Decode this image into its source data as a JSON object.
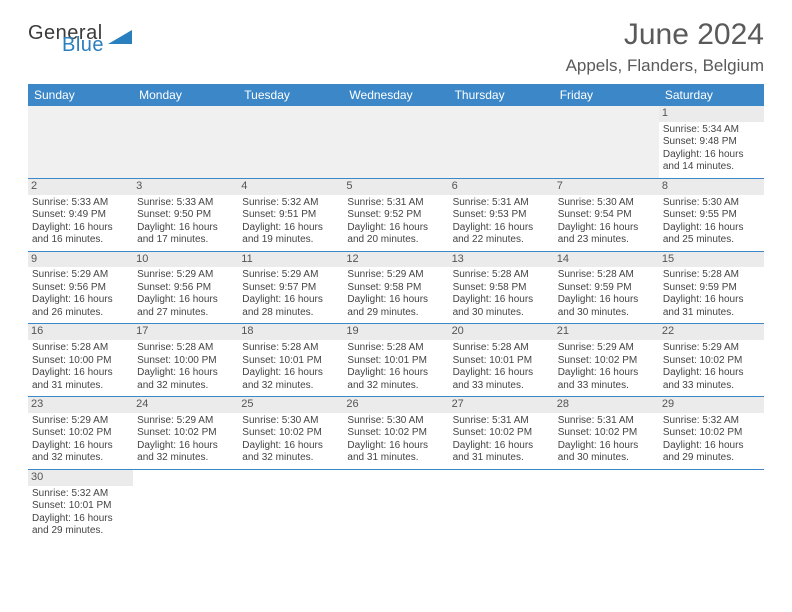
{
  "logo": {
    "part1": "General",
    "part2": "Blue",
    "tri_color": "#2a7fbf"
  },
  "title": "June 2024",
  "location": "Appels, Flanders, Belgium",
  "colors": {
    "header_bg": "#3b87c8",
    "header_text": "#ffffff",
    "daynum_bg": "#ebebeb",
    "border": "#3b87c8",
    "text": "#444444"
  },
  "columns": [
    "Sunday",
    "Monday",
    "Tuesday",
    "Wednesday",
    "Thursday",
    "Friday",
    "Saturday"
  ],
  "weeks": [
    [
      null,
      null,
      null,
      null,
      null,
      null,
      {
        "n": "1",
        "sr": "Sunrise: 5:34 AM",
        "ss": "Sunset: 9:48 PM",
        "d1": "Daylight: 16 hours",
        "d2": "and 14 minutes."
      }
    ],
    [
      {
        "n": "2",
        "sr": "Sunrise: 5:33 AM",
        "ss": "Sunset: 9:49 PM",
        "d1": "Daylight: 16 hours",
        "d2": "and 16 minutes."
      },
      {
        "n": "3",
        "sr": "Sunrise: 5:33 AM",
        "ss": "Sunset: 9:50 PM",
        "d1": "Daylight: 16 hours",
        "d2": "and 17 minutes."
      },
      {
        "n": "4",
        "sr": "Sunrise: 5:32 AM",
        "ss": "Sunset: 9:51 PM",
        "d1": "Daylight: 16 hours",
        "d2": "and 19 minutes."
      },
      {
        "n": "5",
        "sr": "Sunrise: 5:31 AM",
        "ss": "Sunset: 9:52 PM",
        "d1": "Daylight: 16 hours",
        "d2": "and 20 minutes."
      },
      {
        "n": "6",
        "sr": "Sunrise: 5:31 AM",
        "ss": "Sunset: 9:53 PM",
        "d1": "Daylight: 16 hours",
        "d2": "and 22 minutes."
      },
      {
        "n": "7",
        "sr": "Sunrise: 5:30 AM",
        "ss": "Sunset: 9:54 PM",
        "d1": "Daylight: 16 hours",
        "d2": "and 23 minutes."
      },
      {
        "n": "8",
        "sr": "Sunrise: 5:30 AM",
        "ss": "Sunset: 9:55 PM",
        "d1": "Daylight: 16 hours",
        "d2": "and 25 minutes."
      }
    ],
    [
      {
        "n": "9",
        "sr": "Sunrise: 5:29 AM",
        "ss": "Sunset: 9:56 PM",
        "d1": "Daylight: 16 hours",
        "d2": "and 26 minutes."
      },
      {
        "n": "10",
        "sr": "Sunrise: 5:29 AM",
        "ss": "Sunset: 9:56 PM",
        "d1": "Daylight: 16 hours",
        "d2": "and 27 minutes."
      },
      {
        "n": "11",
        "sr": "Sunrise: 5:29 AM",
        "ss": "Sunset: 9:57 PM",
        "d1": "Daylight: 16 hours",
        "d2": "and 28 minutes."
      },
      {
        "n": "12",
        "sr": "Sunrise: 5:29 AM",
        "ss": "Sunset: 9:58 PM",
        "d1": "Daylight: 16 hours",
        "d2": "and 29 minutes."
      },
      {
        "n": "13",
        "sr": "Sunrise: 5:28 AM",
        "ss": "Sunset: 9:58 PM",
        "d1": "Daylight: 16 hours",
        "d2": "and 30 minutes."
      },
      {
        "n": "14",
        "sr": "Sunrise: 5:28 AM",
        "ss": "Sunset: 9:59 PM",
        "d1": "Daylight: 16 hours",
        "d2": "and 30 minutes."
      },
      {
        "n": "15",
        "sr": "Sunrise: 5:28 AM",
        "ss": "Sunset: 9:59 PM",
        "d1": "Daylight: 16 hours",
        "d2": "and 31 minutes."
      }
    ],
    [
      {
        "n": "16",
        "sr": "Sunrise: 5:28 AM",
        "ss": "Sunset: 10:00 PM",
        "d1": "Daylight: 16 hours",
        "d2": "and 31 minutes."
      },
      {
        "n": "17",
        "sr": "Sunrise: 5:28 AM",
        "ss": "Sunset: 10:00 PM",
        "d1": "Daylight: 16 hours",
        "d2": "and 32 minutes."
      },
      {
        "n": "18",
        "sr": "Sunrise: 5:28 AM",
        "ss": "Sunset: 10:01 PM",
        "d1": "Daylight: 16 hours",
        "d2": "and 32 minutes."
      },
      {
        "n": "19",
        "sr": "Sunrise: 5:28 AM",
        "ss": "Sunset: 10:01 PM",
        "d1": "Daylight: 16 hours",
        "d2": "and 32 minutes."
      },
      {
        "n": "20",
        "sr": "Sunrise: 5:28 AM",
        "ss": "Sunset: 10:01 PM",
        "d1": "Daylight: 16 hours",
        "d2": "and 33 minutes."
      },
      {
        "n": "21",
        "sr": "Sunrise: 5:29 AM",
        "ss": "Sunset: 10:02 PM",
        "d1": "Daylight: 16 hours",
        "d2": "and 33 minutes."
      },
      {
        "n": "22",
        "sr": "Sunrise: 5:29 AM",
        "ss": "Sunset: 10:02 PM",
        "d1": "Daylight: 16 hours",
        "d2": "and 33 minutes."
      }
    ],
    [
      {
        "n": "23",
        "sr": "Sunrise: 5:29 AM",
        "ss": "Sunset: 10:02 PM",
        "d1": "Daylight: 16 hours",
        "d2": "and 32 minutes."
      },
      {
        "n": "24",
        "sr": "Sunrise: 5:29 AM",
        "ss": "Sunset: 10:02 PM",
        "d1": "Daylight: 16 hours",
        "d2": "and 32 minutes."
      },
      {
        "n": "25",
        "sr": "Sunrise: 5:30 AM",
        "ss": "Sunset: 10:02 PM",
        "d1": "Daylight: 16 hours",
        "d2": "and 32 minutes."
      },
      {
        "n": "26",
        "sr": "Sunrise: 5:30 AM",
        "ss": "Sunset: 10:02 PM",
        "d1": "Daylight: 16 hours",
        "d2": "and 31 minutes."
      },
      {
        "n": "27",
        "sr": "Sunrise: 5:31 AM",
        "ss": "Sunset: 10:02 PM",
        "d1": "Daylight: 16 hours",
        "d2": "and 31 minutes."
      },
      {
        "n": "28",
        "sr": "Sunrise: 5:31 AM",
        "ss": "Sunset: 10:02 PM",
        "d1": "Daylight: 16 hours",
        "d2": "and 30 minutes."
      },
      {
        "n": "29",
        "sr": "Sunrise: 5:32 AM",
        "ss": "Sunset: 10:02 PM",
        "d1": "Daylight: 16 hours",
        "d2": "and 29 minutes."
      }
    ],
    [
      {
        "n": "30",
        "sr": "Sunrise: 5:32 AM",
        "ss": "Sunset: 10:01 PM",
        "d1": "Daylight: 16 hours",
        "d2": "and 29 minutes."
      },
      null,
      null,
      null,
      null,
      null,
      null
    ]
  ]
}
